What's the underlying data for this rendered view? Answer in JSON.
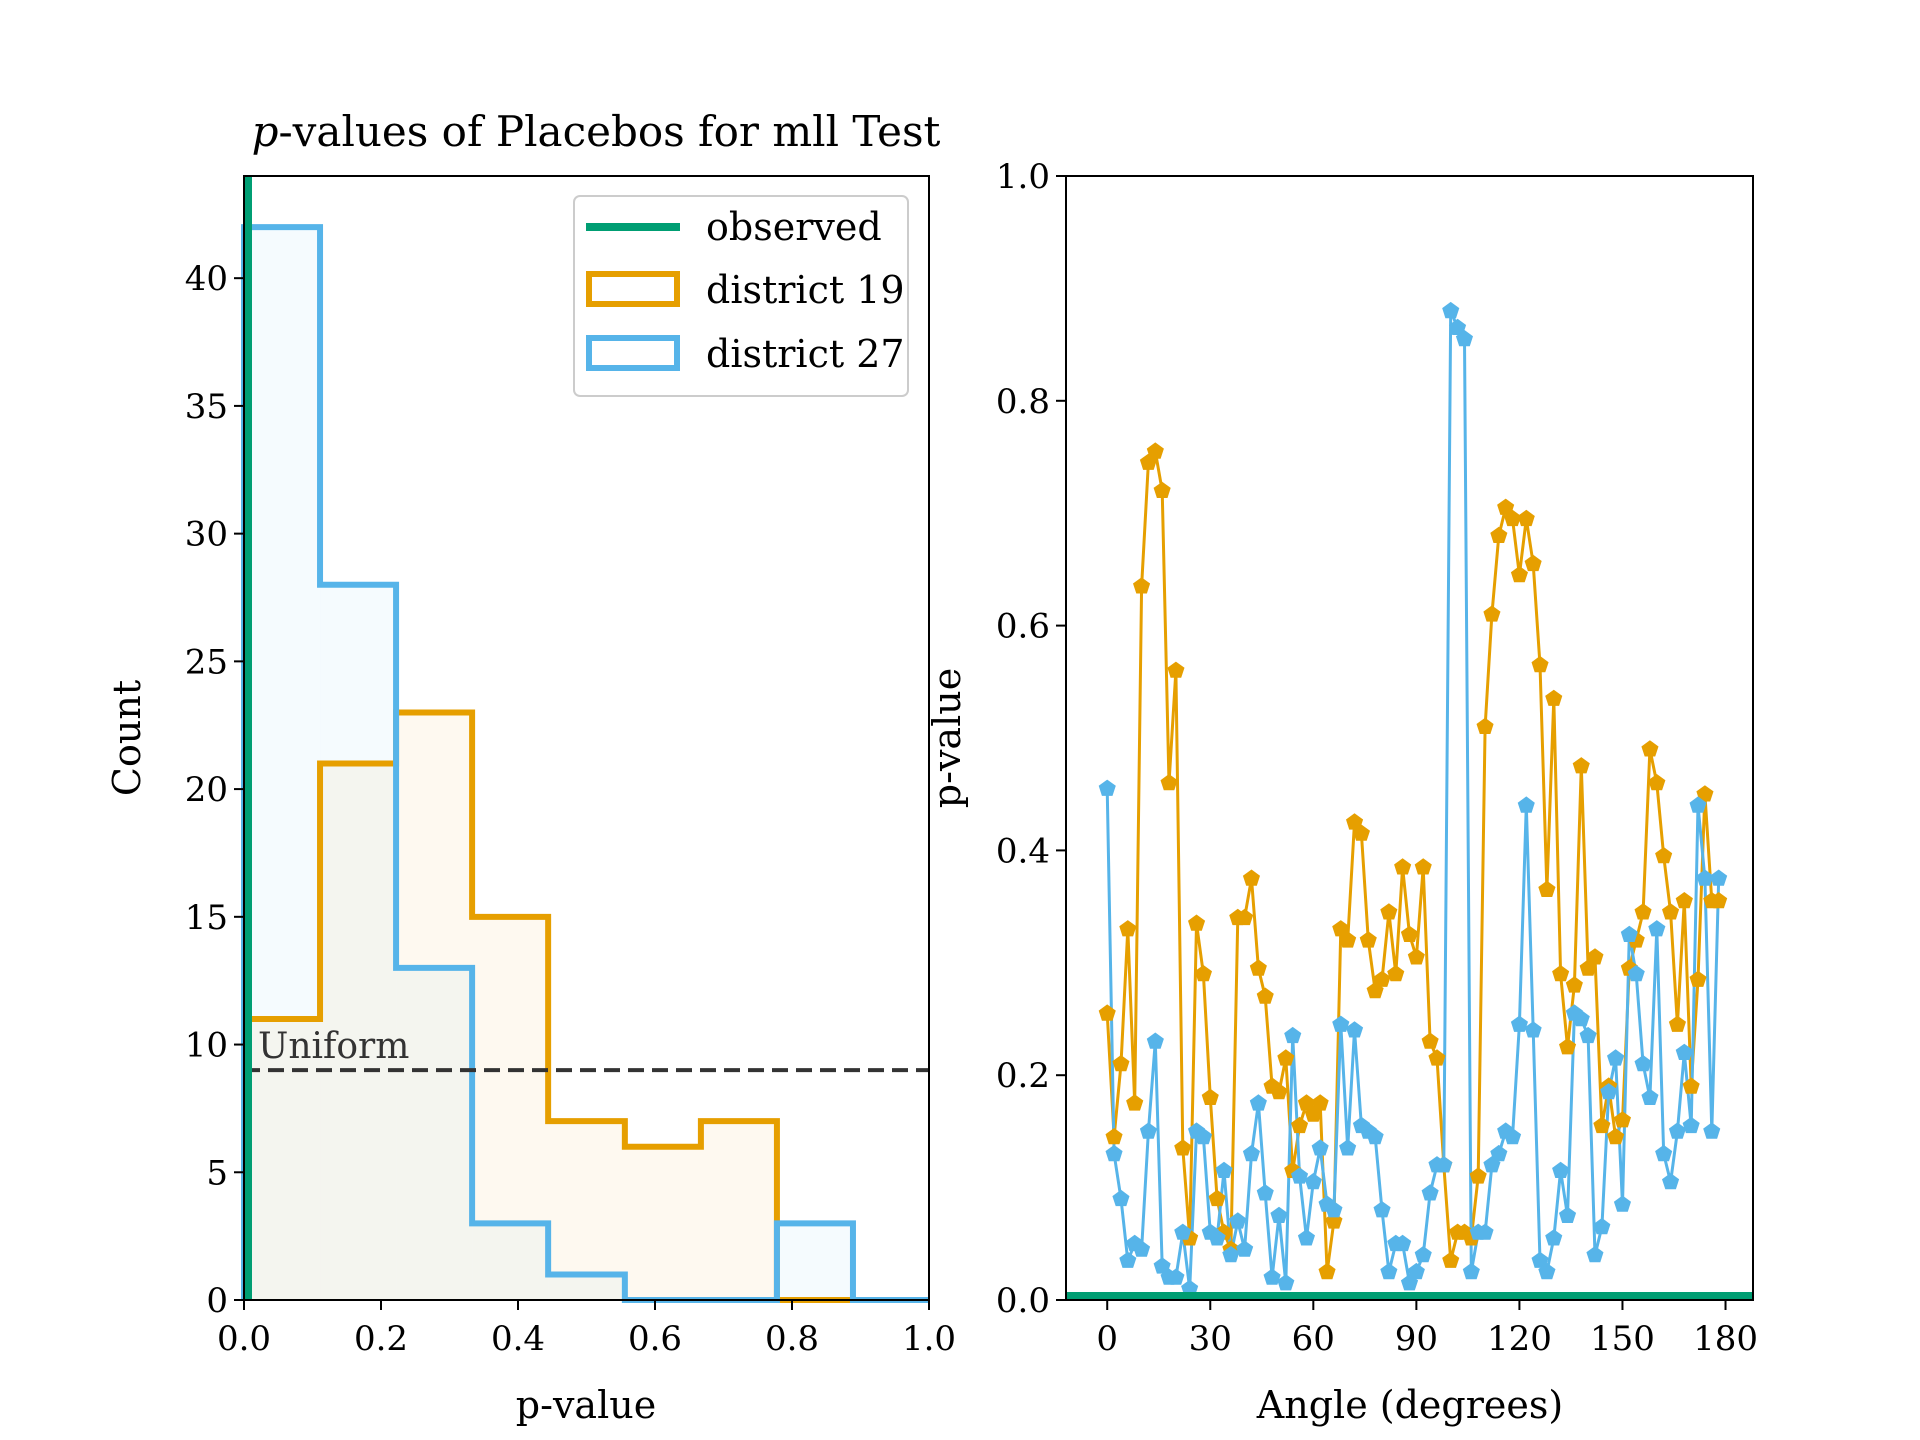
{
  "chart_data": [
    {
      "type": "histogram",
      "title_italic": "p",
      "title_rest": "-values of Placebos for mll Test",
      "xlabel": "p-value",
      "ylabel": "Count",
      "xlim": [
        0,
        1.0
      ],
      "ylim": [
        0,
        44
      ],
      "xticks": [
        "0.0",
        "0.2",
        "0.4",
        "0.6",
        "0.8",
        "1.0"
      ],
      "yticks": [
        "0",
        "5",
        "10",
        "15",
        "20",
        "25",
        "30",
        "35",
        "40"
      ],
      "bin_edges": [
        0,
        0.111,
        0.222,
        0.333,
        0.444,
        0.556,
        0.667,
        0.778,
        0.889,
        1.0
      ],
      "series": [
        {
          "name": "district 19",
          "color": "#E69F00",
          "counts": [
            11,
            21,
            23,
            15,
            7,
            6,
            7,
            0,
            0
          ]
        },
        {
          "name": "district 27",
          "color": "#56B4E9",
          "counts": [
            42,
            28,
            13,
            3,
            1,
            0,
            0,
            3,
            0
          ]
        }
      ],
      "observed": {
        "name": "observed",
        "color": "#009E73",
        "value": 0.0
      },
      "uniform": {
        "label": "Uniform",
        "value": 9
      }
    },
    {
      "type": "line",
      "xlabel": "Angle (degrees)",
      "ylabel": "p-value",
      "xlim": [
        -12,
        188
      ],
      "ylim": [
        0,
        1.0
      ],
      "xticks": [
        "0",
        "30",
        "60",
        "90",
        "120",
        "150",
        "180"
      ],
      "yticks": [
        "0.0",
        "0.2",
        "0.4",
        "0.6",
        "0.8",
        "1.0"
      ],
      "observed_value": 0.0,
      "x": [
        0,
        2,
        4,
        6,
        8,
        10,
        12,
        14,
        16,
        18,
        20,
        22,
        24,
        26,
        28,
        30,
        32,
        34,
        36,
        38,
        40,
        42,
        44,
        46,
        48,
        50,
        52,
        54,
        56,
        58,
        60,
        62,
        64,
        66,
        68,
        70,
        72,
        74,
        76,
        78,
        80,
        82,
        84,
        86,
        88,
        90,
        92,
        94,
        96,
        98,
        100,
        102,
        104,
        106,
        108,
        110,
        112,
        114,
        116,
        118,
        120,
        122,
        124,
        126,
        128,
        130,
        132,
        134,
        136,
        138,
        140,
        142,
        144,
        146,
        148,
        150,
        152,
        154,
        156,
        158,
        160,
        162,
        164,
        166,
        168,
        170,
        172,
        174,
        176,
        178
      ],
      "series": [
        {
          "name": "district 19",
          "color": "#E69F00",
          "values": [
            0.255,
            0.145,
            0.21,
            0.33,
            0.175,
            0.635,
            0.745,
            0.755,
            0.72,
            0.46,
            0.56,
            0.135,
            0.055,
            0.335,
            0.29,
            0.18,
            0.09,
            0.06,
            0.045,
            0.34,
            0.34,
            0.375,
            0.295,
            0.27,
            0.19,
            0.185,
            0.215,
            0.115,
            0.155,
            0.175,
            0.165,
            0.175,
            0.025,
            0.07,
            0.33,
            0.32,
            0.425,
            0.415,
            0.32,
            0.275,
            0.285,
            0.345,
            0.29,
            0.385,
            0.325,
            0.305,
            0.385,
            0.23,
            0.215,
            0.12,
            0.035,
            0.06,
            0.06,
            0.055,
            0.11,
            0.51,
            0.61,
            0.68,
            0.705,
            0.695,
            0.645,
            0.695,
            0.655,
            0.565,
            0.365,
            0.535,
            0.29,
            0.225,
            0.28,
            0.475,
            0.295,
            0.305,
            0.155,
            0.19,
            0.145,
            0.16,
            0.295,
            0.32,
            0.345,
            0.49,
            0.46,
            0.395,
            0.345,
            0.245,
            0.355,
            0.19,
            0.285,
            0.45,
            0.355,
            0.355
          ]
        },
        {
          "name": "district 27",
          "color": "#56B4E9",
          "values": [
            0.455,
            0.13,
            0.09,
            0.035,
            0.05,
            0.045,
            0.15,
            0.23,
            0.03,
            0.02,
            0.02,
            0.06,
            0.01,
            0.15,
            0.145,
            0.06,
            0.055,
            0.115,
            0.04,
            0.07,
            0.045,
            0.13,
            0.175,
            0.095,
            0.02,
            0.075,
            0.015,
            0.235,
            0.11,
            0.055,
            0.105,
            0.135,
            0.085,
            0.08,
            0.245,
            0.135,
            0.24,
            0.155,
            0.15,
            0.145,
            0.08,
            0.025,
            0.05,
            0.05,
            0.015,
            0.025,
            0.04,
            0.095,
            0.12,
            0.12,
            0.88,
            0.865,
            0.855,
            0.025,
            0.06,
            0.06,
            0.12,
            0.13,
            0.15,
            0.145,
            0.245,
            0.44,
            0.24,
            0.035,
            0.025,
            0.055,
            0.115,
            0.075,
            0.255,
            0.25,
            0.235,
            0.04,
            0.065,
            0.185,
            0.215,
            0.085,
            0.325,
            0.29,
            0.21,
            0.18,
            0.33,
            0.13,
            0.105,
            0.15,
            0.22,
            0.155,
            0.44,
            0.375,
            0.15,
            0.375
          ]
        }
      ]
    }
  ]
}
